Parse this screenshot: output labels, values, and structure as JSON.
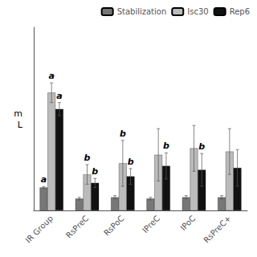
{
  "chart_data": {
    "type": "bar",
    "categories": [
      "IR Group",
      "RsPreC",
      "RsPoC",
      "IPreC",
      "IPoC",
      "RsPreC+"
    ],
    "series": [
      {
        "name": "Stabilization",
        "color": "#777777",
        "values": [
          3.5,
          1.8,
          2.0,
          1.8,
          2.0,
          2.0
        ],
        "errors": [
          0.15,
          0.2,
          0.25,
          0.2,
          0.25,
          0.25
        ],
        "annotations": [
          "a",
          null,
          null,
          null,
          null,
          null
        ]
      },
      {
        "name": "Isc30",
        "color": "#bbbbbb",
        "values": [
          18.0,
          5.5,
          7.2,
          8.5,
          9.5,
          9.0
        ],
        "errors": [
          1.5,
          1.5,
          3.5,
          4.0,
          3.5,
          3.5
        ],
        "annotations": [
          "a",
          "b",
          "b",
          null,
          null,
          null
        ]
      },
      {
        "name": "Rep6",
        "color": "#111111",
        "values": [
          15.5,
          4.2,
          5.2,
          6.8,
          6.2,
          6.5
        ],
        "errors": [
          1.0,
          0.7,
          1.2,
          2.0,
          2.5,
          2.8
        ],
        "annotations": [
          "a",
          "b",
          "b",
          "b",
          "b",
          null
        ]
      }
    ],
    "ylabel": [
      "m",
      "L"
    ],
    "ylim": [
      0,
      28
    ],
    "yticks": [],
    "tick_labels": "x",
    "grid": false,
    "legend": "upper right"
  }
}
